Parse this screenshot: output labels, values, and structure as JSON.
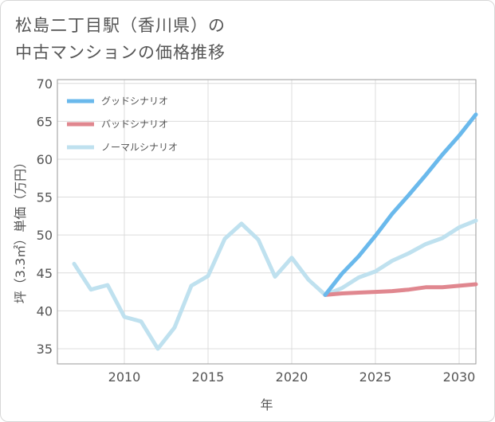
{
  "title_lines": [
    "松島二丁目駅（香川県）の",
    "中古マンションの価格推移"
  ],
  "chart_data": {
    "type": "line",
    "title": "松島二丁目駅（香川県）の中古マンションの価格推移",
    "xlabel": "年",
    "ylabel": "坪（3.3㎡）単価（万円）",
    "xlim": [
      2006,
      2031
    ],
    "ylim": [
      33,
      70.5
    ],
    "xticks": [
      2010,
      2015,
      2020,
      2025,
      2030
    ],
    "yticks": [
      35,
      40,
      45,
      50,
      55,
      60,
      65,
      70
    ],
    "grid": true,
    "legend_position": "top-left",
    "series": [
      {
        "name": "グッドシナリオ",
        "color": "#6ab9ec",
        "x": [
          2022,
          2023,
          2024,
          2025,
          2026,
          2027,
          2028,
          2029,
          2030,
          2031
        ],
        "y": [
          42.1,
          44.9,
          47.2,
          49.9,
          52.8,
          55.3,
          57.9,
          60.6,
          63.1,
          65.9
        ]
      },
      {
        "name": "バッドシナリオ",
        "color": "#e0878f",
        "x": [
          2022,
          2023,
          2024,
          2025,
          2026,
          2027,
          2028,
          2029,
          2030,
          2031
        ],
        "y": [
          42.1,
          42.3,
          42.4,
          42.5,
          42.6,
          42.8,
          43.1,
          43.1,
          43.3,
          43.5
        ]
      },
      {
        "name": "ノーマルシナリオ",
        "color": "#bfe1ef",
        "x": [
          2007,
          2008,
          2009,
          2010,
          2011,
          2012,
          2013,
          2014,
          2015,
          2016,
          2017,
          2018,
          2019,
          2020,
          2021,
          2022,
          2023,
          2024,
          2025,
          2026,
          2027,
          2028,
          2029,
          2030,
          2031
        ],
        "y": [
          46.2,
          42.8,
          43.4,
          39.2,
          38.6,
          35.0,
          37.8,
          43.3,
          44.6,
          49.5,
          51.5,
          49.4,
          44.5,
          47.0,
          44.1,
          42.1,
          43.0,
          44.4,
          45.2,
          46.6,
          47.6,
          48.8,
          49.6,
          51.0,
          51.9
        ]
      }
    ]
  }
}
